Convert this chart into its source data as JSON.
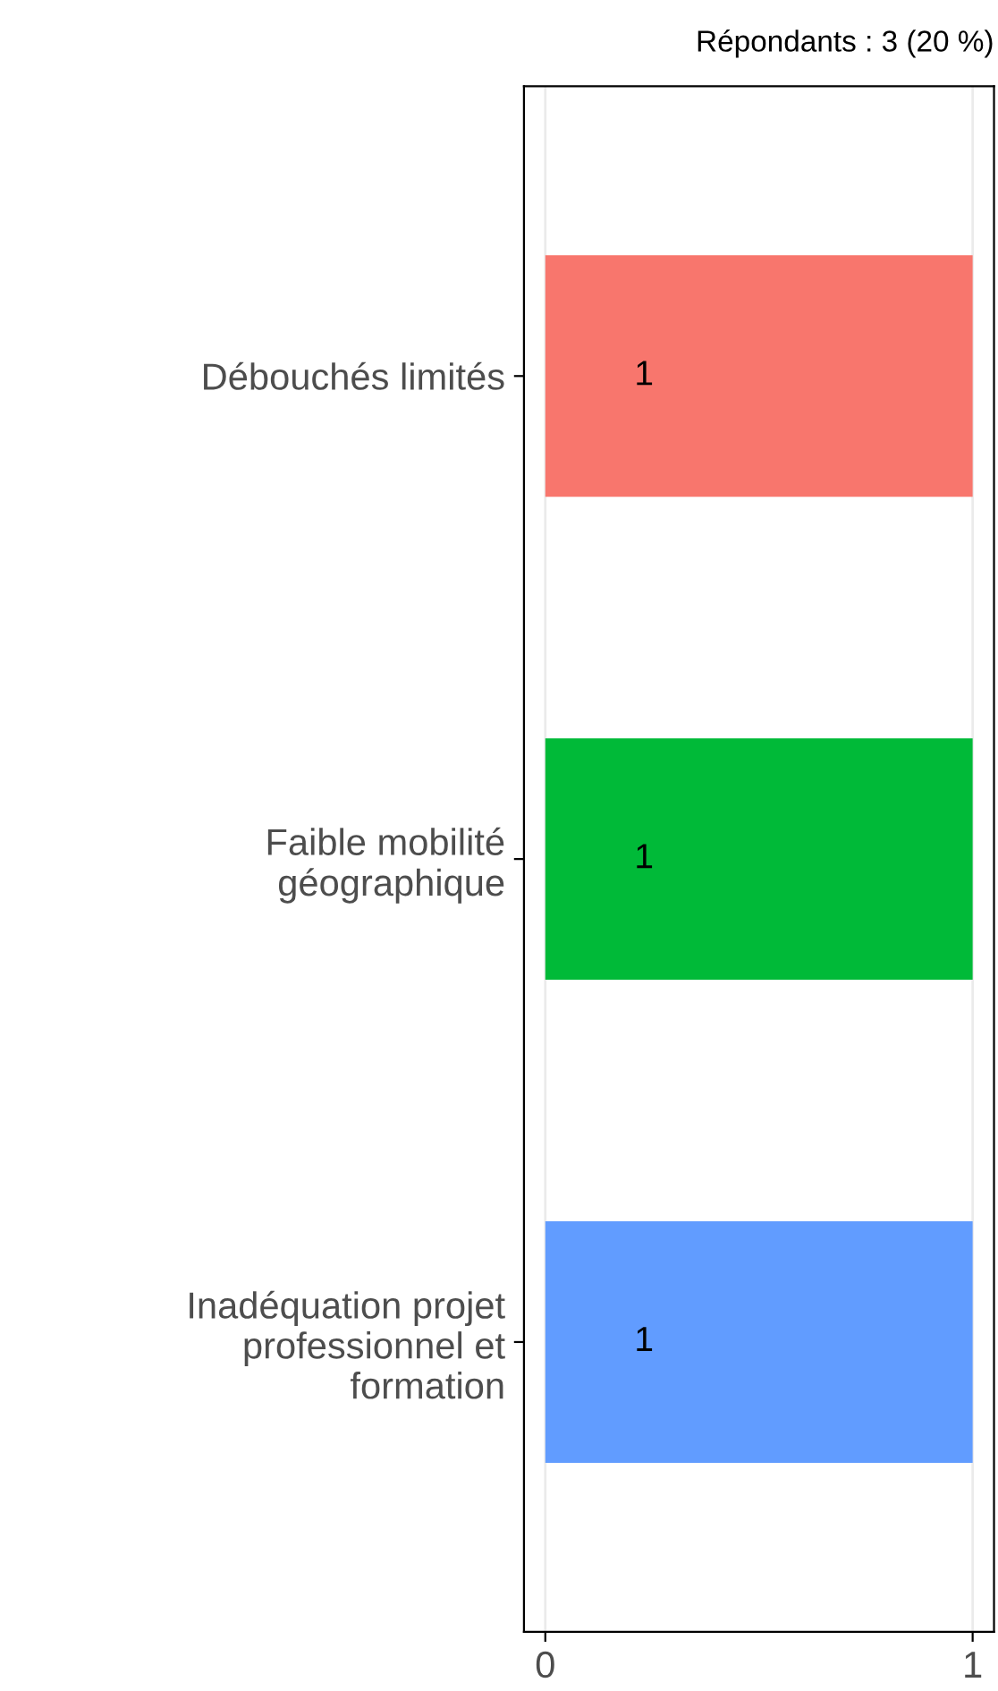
{
  "chart_data": {
    "type": "bar",
    "orientation": "horizontal",
    "title": "Répondants : 3 (20 %)",
    "categories": [
      "Débouchés limités",
      "Faible mobilité\ngéographique",
      "Inadéquation projet\nprofessionnel et\nformation"
    ],
    "values": [
      1,
      1,
      1
    ],
    "colors": [
      "#f8766d",
      "#00ba38",
      "#619cff"
    ],
    "xlim": [
      -0.05,
      1.05
    ],
    "xticks": [
      0,
      1
    ],
    "grid": "x",
    "data_labels": true,
    "legend": false
  }
}
